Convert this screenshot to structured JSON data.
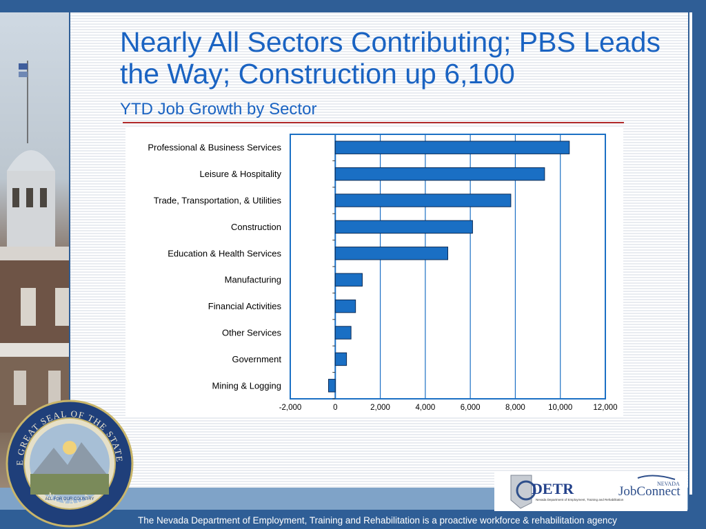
{
  "slide": {
    "title": "Nearly All Sectors Contributing; PBS Leads the Way; Construction up 6,100",
    "subtitle": "YTD Job Growth by Sector",
    "footer": "The Nevada Department of Employment, Training and Rehabilitation is a proactive workforce & rehabilitation agency",
    "seal_text_top": "THE GREAT SEAL OF THE STATE OF",
    "seal_text_bottom": "NEVADA",
    "seal_motto": "ALL FOR OUR COUNTRY",
    "logo_detr": "DETR",
    "logo_detr_sub": "Nevada Department of Employment, Training and Rehabilitation",
    "logo_jobconnect": "JobConnect",
    "logo_jobconnect_top": "NEVADA"
  },
  "colors": {
    "accent": "#1a63c2",
    "bar": "#1a6fc4",
    "frame": "#2f5e96"
  },
  "chart_data": {
    "type": "bar",
    "orientation": "horizontal",
    "categories": [
      "Professional & Business Services",
      "Leisure & Hospitality",
      "Trade, Transportation, & Utilities",
      "Construction",
      "Education & Health Services",
      "Manufacturing",
      "Financial Activities",
      "Other Services",
      "Government",
      "Mining & Logging"
    ],
    "values": [
      10400,
      9300,
      7800,
      6100,
      5000,
      1200,
      900,
      700,
      500,
      -300
    ],
    "xlim": [
      -2000,
      12000
    ],
    "xticks": [
      -2000,
      0,
      2000,
      4000,
      6000,
      8000,
      10000,
      12000
    ],
    "xtick_labels": [
      "-2,000",
      "0",
      "2,000",
      "4,000",
      "6,000",
      "8,000",
      "10,000",
      "12,000"
    ],
    "grid": true
  }
}
